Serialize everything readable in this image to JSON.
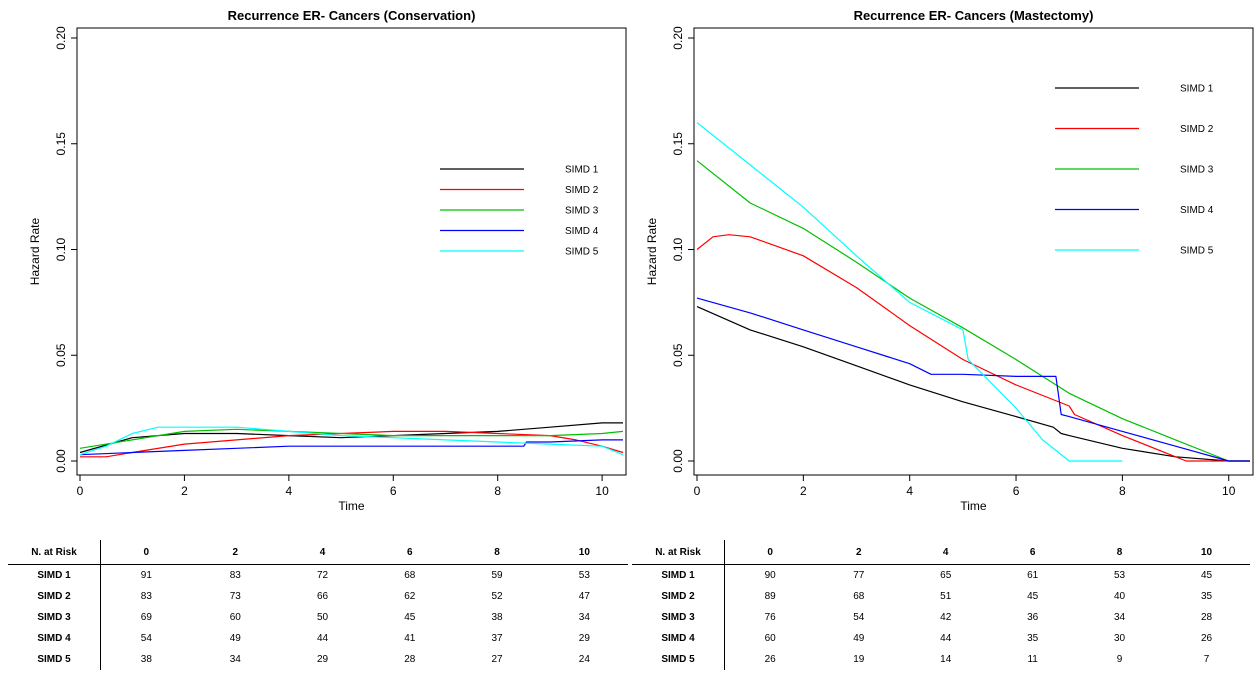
{
  "chart_data": [
    {
      "type": "line",
      "title": "Recurrence ER- Cancers (Conservation)",
      "xlabel": "Time",
      "ylabel": "Hazard Rate",
      "xlim": [
        0,
        10.4
      ],
      "ylim": [
        0,
        0.2
      ],
      "xticks": [
        "0",
        "2",
        "4",
        "6",
        "8",
        "10"
      ],
      "yticks": [
        "0.00",
        "0.05",
        "0.10",
        "0.15",
        "0.20"
      ],
      "legend_position": "right",
      "series": [
        {
          "name": "SIMD 1",
          "color": "#000000",
          "points": [
            [
              0,
              0.004
            ],
            [
              1,
              0.011
            ],
            [
              2,
              0.013
            ],
            [
              3,
              0.013
            ],
            [
              4,
              0.012
            ],
            [
              5,
              0.011
            ],
            [
              6,
              0.012
            ],
            [
              7,
              0.013
            ],
            [
              8,
              0.014
            ],
            [
              9,
              0.016
            ],
            [
              10,
              0.018
            ],
            [
              10.4,
              0.018
            ]
          ]
        },
        {
          "name": "SIMD 2",
          "color": "#ff0000",
          "points": [
            [
              0,
              0.002
            ],
            [
              0.5,
              0.002
            ],
            [
              1,
              0.004
            ],
            [
              2,
              0.008
            ],
            [
              3,
              0.01
            ],
            [
              4,
              0.012
            ],
            [
              5,
              0.013
            ],
            [
              6,
              0.014
            ],
            [
              7,
              0.014
            ],
            [
              8,
              0.013
            ],
            [
              9,
              0.012
            ],
            [
              9.5,
              0.01
            ],
            [
              10,
              0.007
            ],
            [
              10.4,
              0.004
            ]
          ]
        },
        {
          "name": "SIMD 3",
          "color": "#00c000",
          "points": [
            [
              0,
              0.006
            ],
            [
              1,
              0.01
            ],
            [
              2,
              0.014
            ],
            [
              3,
              0.015
            ],
            [
              4,
              0.014
            ],
            [
              5,
              0.013
            ],
            [
              6,
              0.012
            ],
            [
              7,
              0.012
            ],
            [
              8,
              0.012
            ],
            [
              9,
              0.012
            ],
            [
              10,
              0.013
            ],
            [
              10.4,
              0.014
            ]
          ]
        },
        {
          "name": "SIMD 4",
          "color": "#0000ff",
          "points": [
            [
              0,
              0.003
            ],
            [
              1,
              0.004
            ],
            [
              2,
              0.005
            ],
            [
              3,
              0.006
            ],
            [
              4,
              0.007
            ],
            [
              5,
              0.007
            ],
            [
              6,
              0.007
            ],
            [
              7,
              0.007
            ],
            [
              8,
              0.007
            ],
            [
              8.5,
              0.007
            ],
            [
              8.55,
              0.009
            ],
            [
              9,
              0.009
            ],
            [
              10,
              0.01
            ],
            [
              10.4,
              0.01
            ]
          ]
        },
        {
          "name": "SIMD 5",
          "color": "#00ffff",
          "points": [
            [
              0,
              0.003
            ],
            [
              0.5,
              0.007
            ],
            [
              1,
              0.013
            ],
            [
              1.5,
              0.016
            ],
            [
              2,
              0.016
            ],
            [
              3,
              0.016
            ],
            [
              4,
              0.014
            ],
            [
              5,
              0.012
            ],
            [
              6,
              0.011
            ],
            [
              7,
              0.01
            ],
            [
              8,
              0.009
            ],
            [
              9,
              0.008
            ],
            [
              10,
              0.007
            ],
            [
              10.4,
              0.003
            ]
          ]
        }
      ]
    },
    {
      "type": "line",
      "title": "Recurrence ER- Cancers (Mastectomy)",
      "xlabel": "Time",
      "ylabel": "Hazard Rate",
      "xlim": [
        0,
        10.4
      ],
      "ylim": [
        0,
        0.2
      ],
      "xticks": [
        "0",
        "2",
        "4",
        "6",
        "8",
        "10"
      ],
      "yticks": [
        "0.00",
        "0.05",
        "0.10",
        "0.15",
        "0.20"
      ],
      "legend_position": "top-right",
      "series": [
        {
          "name": "SIMD 1",
          "color": "#000000",
          "points": [
            [
              0,
              0.073
            ],
            [
              1,
              0.062
            ],
            [
              2,
              0.054
            ],
            [
              3,
              0.045
            ],
            [
              4,
              0.036
            ],
            [
              5,
              0.028
            ],
            [
              6,
              0.021
            ],
            [
              6.7,
              0.016
            ],
            [
              6.85,
              0.013
            ],
            [
              7,
              0.012
            ],
            [
              8,
              0.006
            ],
            [
              9,
              0.002
            ],
            [
              10,
              0.0
            ],
            [
              10.4,
              0.0
            ]
          ]
        },
        {
          "name": "SIMD 2",
          "color": "#ff0000",
          "points": [
            [
              0,
              0.1
            ],
            [
              0.3,
              0.106
            ],
            [
              0.6,
              0.107
            ],
            [
              1,
              0.106
            ],
            [
              2,
              0.097
            ],
            [
              3,
              0.082
            ],
            [
              4,
              0.064
            ],
            [
              5,
              0.048
            ],
            [
              6,
              0.036
            ],
            [
              7,
              0.026
            ],
            [
              7.1,
              0.022
            ],
            [
              8,
              0.012
            ],
            [
              9,
              0.002
            ],
            [
              9.2,
              0.0
            ],
            [
              10,
              0.0
            ],
            [
              10.4,
              0.0
            ]
          ]
        },
        {
          "name": "SIMD 3",
          "color": "#00c000",
          "points": [
            [
              0,
              0.142
            ],
            [
              1,
              0.122
            ],
            [
              2,
              0.11
            ],
            [
              3,
              0.094
            ],
            [
              4,
              0.077
            ],
            [
              5,
              0.063
            ],
            [
              6,
              0.048
            ],
            [
              7,
              0.032
            ],
            [
              8,
              0.02
            ],
            [
              9,
              0.01
            ],
            [
              10,
              0.0
            ],
            [
              10.4,
              0.0
            ]
          ]
        },
        {
          "name": "SIMD 4",
          "color": "#0000ff",
          "points": [
            [
              0,
              0.077
            ],
            [
              1,
              0.07
            ],
            [
              2,
              0.062
            ],
            [
              3,
              0.054
            ],
            [
              4,
              0.046
            ],
            [
              4.4,
              0.041
            ],
            [
              5,
              0.041
            ],
            [
              6,
              0.04
            ],
            [
              6.75,
              0.04
            ],
            [
              6.85,
              0.022
            ],
            [
              7,
              0.021
            ],
            [
              8,
              0.014
            ],
            [
              9,
              0.007
            ],
            [
              10,
              0.0
            ],
            [
              10.4,
              0.0
            ]
          ]
        },
        {
          "name": "SIMD 5",
          "color": "#00ffff",
          "points": [
            [
              0,
              0.16
            ],
            [
              1,
              0.14
            ],
            [
              2,
              0.12
            ],
            [
              3,
              0.097
            ],
            [
              4,
              0.075
            ],
            [
              5,
              0.062
            ],
            [
              5.1,
              0.048
            ],
            [
              6,
              0.025
            ],
            [
              6.5,
              0.01
            ],
            [
              7,
              0.0
            ],
            [
              8,
              0.0
            ]
          ]
        }
      ]
    }
  ],
  "risk_tables": [
    {
      "header": "N. at Risk",
      "times": [
        "0",
        "2",
        "4",
        "6",
        "8",
        "10"
      ],
      "rows": [
        {
          "label": "SIMD 1",
          "values": [
            "91",
            "83",
            "72",
            "68",
            "59",
            "53"
          ]
        },
        {
          "label": "SIMD 2",
          "values": [
            "83",
            "73",
            "66",
            "62",
            "52",
            "47"
          ]
        },
        {
          "label": "SIMD 3",
          "values": [
            "69",
            "60",
            "50",
            "45",
            "38",
            "34"
          ]
        },
        {
          "label": "SIMD 4",
          "values": [
            "54",
            "49",
            "44",
            "41",
            "37",
            "29"
          ]
        },
        {
          "label": "SIMD 5",
          "values": [
            "38",
            "34",
            "29",
            "28",
            "27",
            "24"
          ]
        }
      ]
    },
    {
      "header": "N. at Risk",
      "times": [
        "0",
        "2",
        "4",
        "6",
        "8",
        "10"
      ],
      "rows": [
        {
          "label": "SIMD 1",
          "values": [
            "90",
            "77",
            "65",
            "61",
            "53",
            "45"
          ]
        },
        {
          "label": "SIMD 2",
          "values": [
            "89",
            "68",
            "51",
            "45",
            "40",
            "35"
          ]
        },
        {
          "label": "SIMD 3",
          "values": [
            "76",
            "54",
            "42",
            "36",
            "34",
            "28"
          ]
        },
        {
          "label": "SIMD 4",
          "values": [
            "60",
            "49",
            "44",
            "35",
            "30",
            "26"
          ]
        },
        {
          "label": "SIMD 5",
          "values": [
            "26",
            "19",
            "14",
            "11",
            "9",
            "7"
          ]
        }
      ]
    }
  ]
}
